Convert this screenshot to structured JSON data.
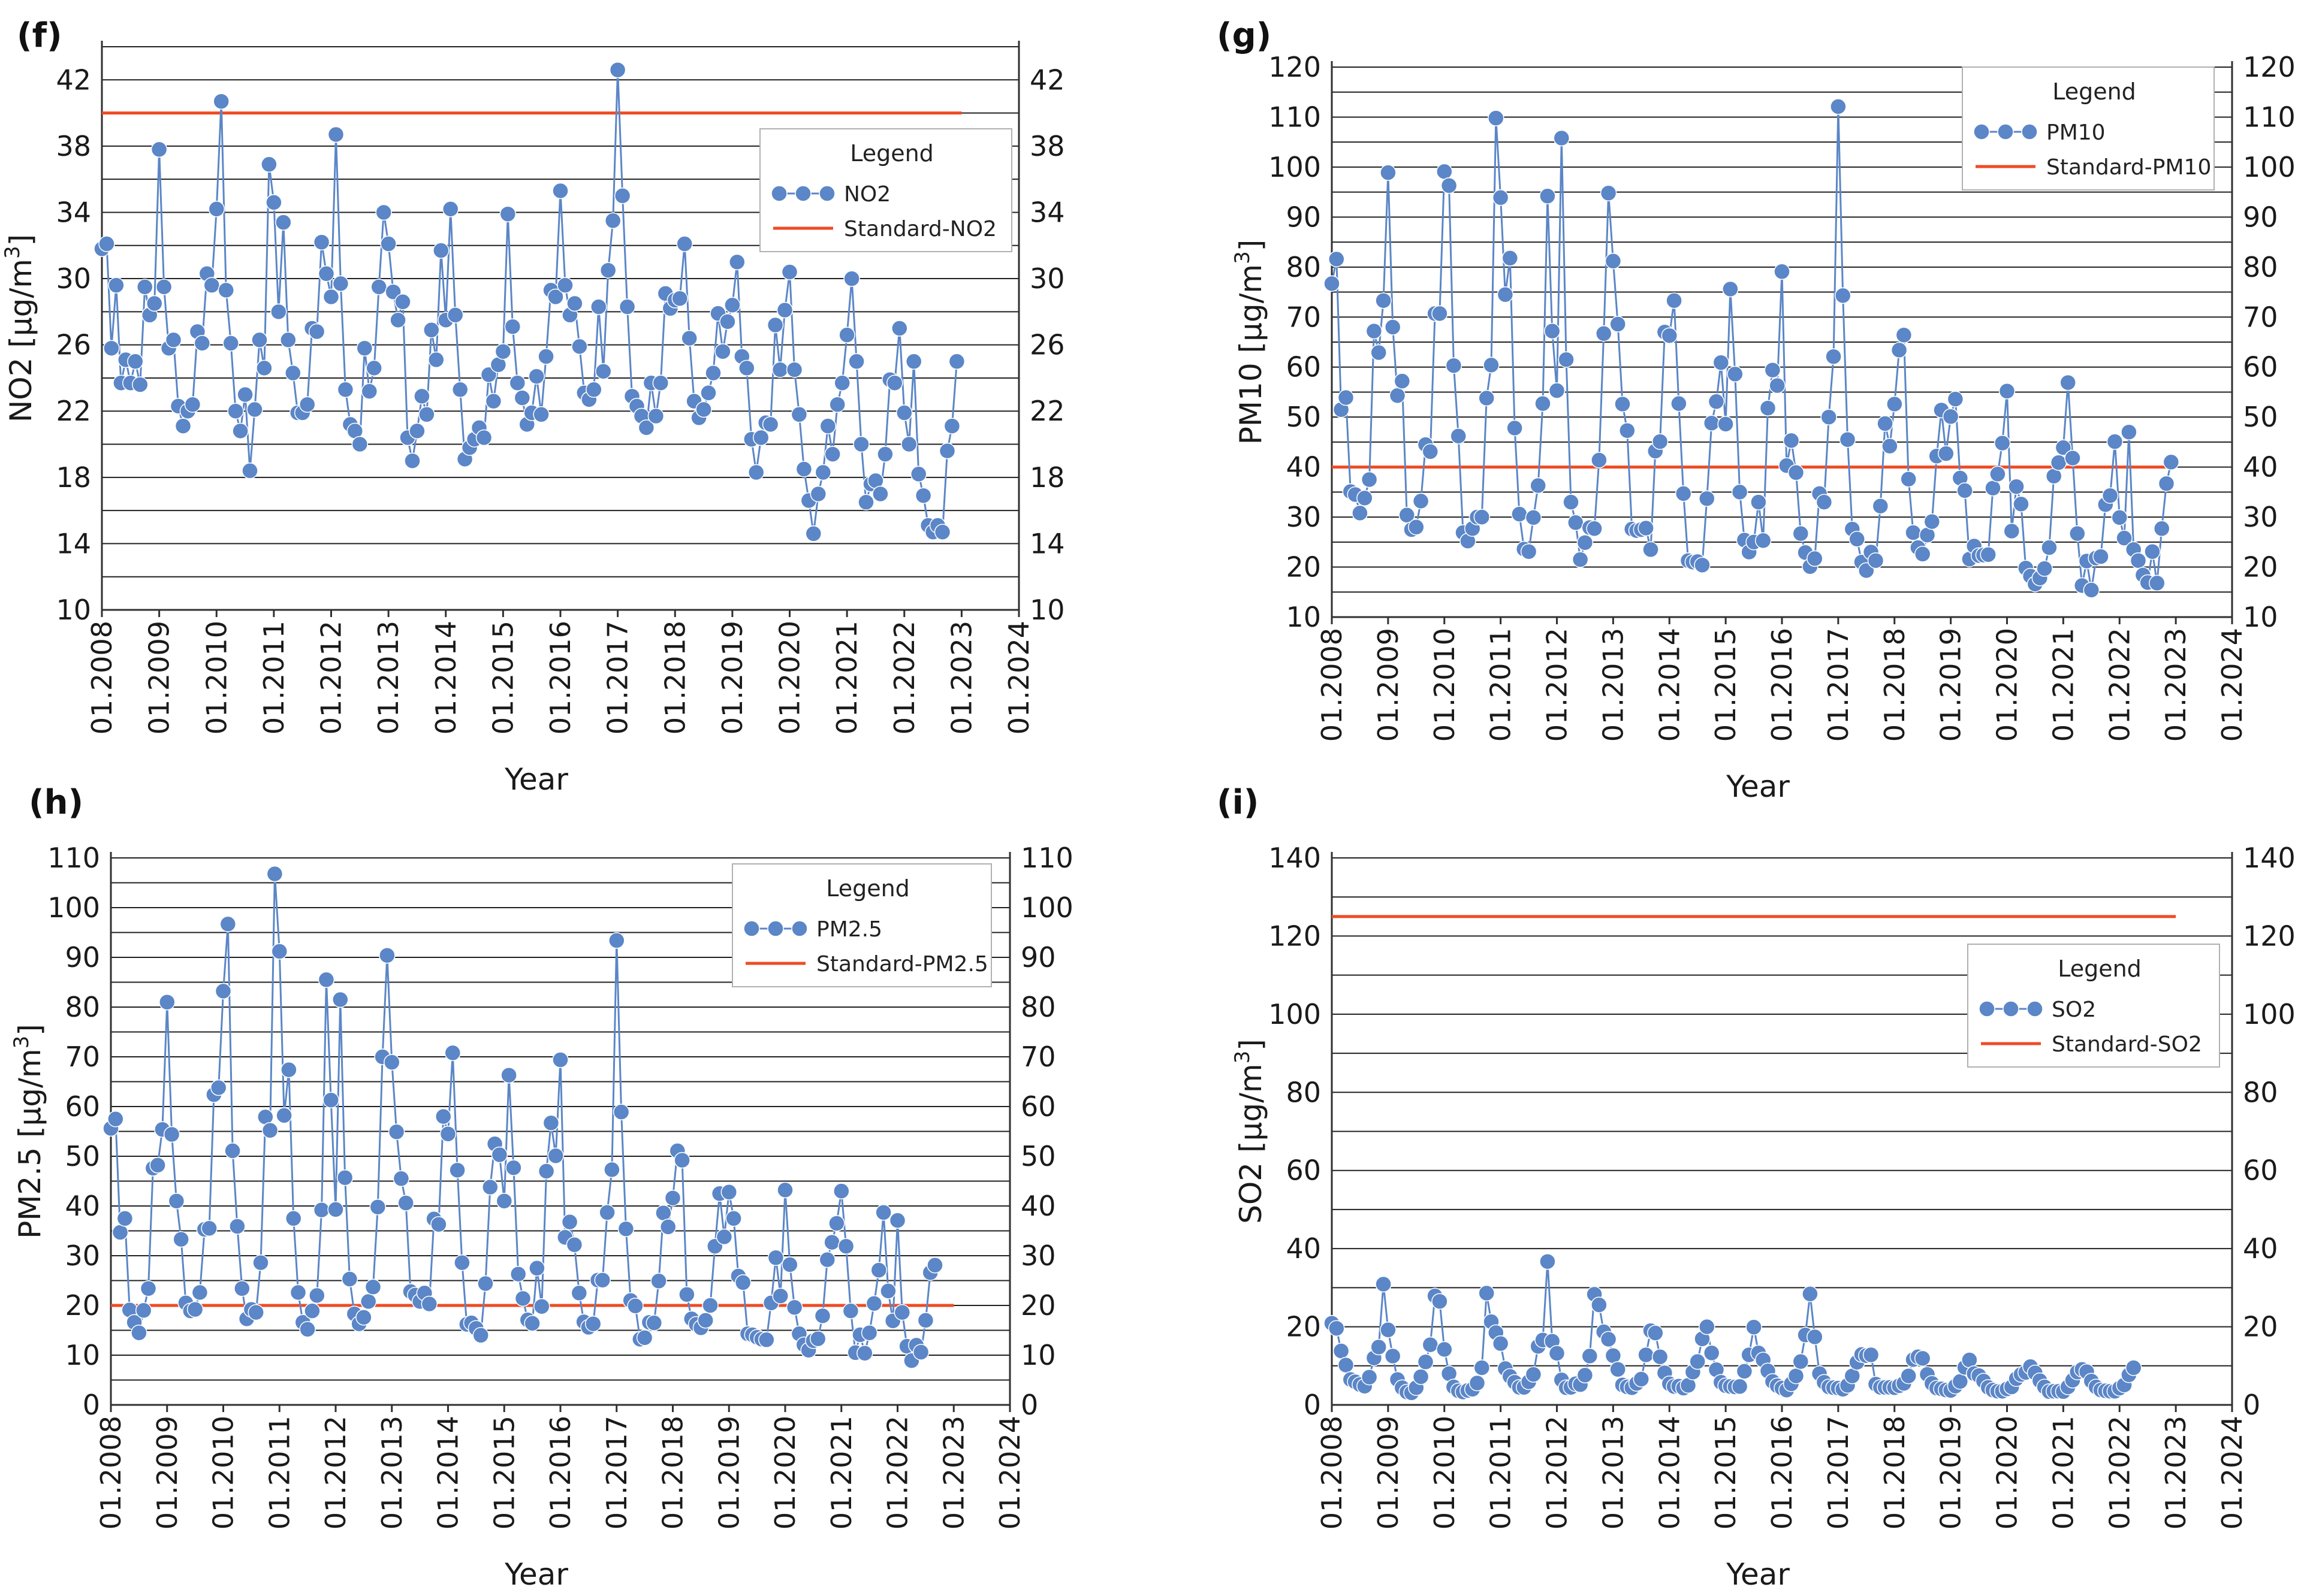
{
  "chart_data": [
    {
      "type": "line",
      "panel": "(f)",
      "xlabel": "Year",
      "ylabel": "NO2 [µg/m3]",
      "ylabel_main": "NO2 [µg/m",
      "ylabel_sup": "3",
      "ylabel_close": "]",
      "ylim": [
        10,
        44
      ],
      "yticks": [
        10,
        14,
        18,
        22,
        26,
        30,
        34,
        38,
        42
      ],
      "grid": true,
      "x_ticks": [
        "01.2008",
        "01.2009",
        "01.2010",
        "01.2011",
        "01.2012",
        "01.2013",
        "01.2014",
        "01.2015",
        "01.2016",
        "01.2017",
        "01.2018",
        "01.2019",
        "01.2020",
        "01.2021",
        "01.2022",
        "01.2023",
        "01.2024"
      ],
      "x_start": "01.2008",
      "legend": {
        "title": "Legend",
        "position": "top-right",
        "series_label": "NO2",
        "standard_label": "Standard-NO2"
      },
      "standard": 40,
      "series": [
        {
          "name": "NO2",
          "color": "#5b86c7",
          "values": [
            31.8,
            32.1,
            25.8,
            29.6,
            23.7,
            25.1,
            23.7,
            25.0,
            23.6,
            29.5,
            27.8,
            28.5,
            37.8,
            29.5,
            25.8,
            26.3,
            22.3,
            21.1,
            22.0,
            22.4,
            26.8,
            26.1,
            30.3,
            29.6,
            34.2,
            40.7,
            29.3,
            26.1,
            22.0,
            20.8,
            23.0,
            18.4,
            22.1,
            26.3,
            24.6,
            36.9,
            34.6,
            28.0,
            33.4,
            26.3,
            24.3,
            21.9,
            21.9,
            22.4,
            27.0,
            26.8,
            32.2,
            30.3,
            28.9,
            38.7,
            29.7,
            23.3,
            21.2,
            20.8,
            20.0,
            25.8,
            23.2,
            24.6,
            29.5,
            34.0,
            32.1,
            29.2,
            27.5,
            28.6,
            20.4,
            19.0,
            20.8,
            22.9,
            21.8,
            26.9,
            25.1,
            31.7,
            27.5,
            34.2,
            27.8,
            23.3,
            19.1,
            19.8,
            20.3,
            21.0,
            20.4,
            24.2,
            22.6,
            24.8,
            25.6,
            33.9,
            27.1,
            23.7,
            22.8,
            21.2,
            21.9,
            24.1,
            21.8,
            25.3,
            29.3,
            28.9,
            35.3,
            29.6,
            27.8,
            28.5,
            25.9,
            23.1,
            22.7,
            23.3,
            28.3,
            24.4,
            30.5,
            33.5,
            42.6,
            35.0,
            28.3,
            22.9,
            22.3,
            21.7,
            21.0,
            23.7,
            21.7,
            23.7,
            29.1,
            28.2,
            28.7,
            28.8,
            32.1,
            26.4,
            22.6,
            21.6,
            22.1,
            23.1,
            24.3,
            27.9,
            25.6,
            27.4,
            28.4,
            31.0,
            25.3,
            24.6,
            20.3,
            18.3,
            20.4,
            21.3,
            21.2,
            27.2,
            24.5,
            28.1,
            30.4,
            24.5,
            21.8,
            18.5,
            16.6,
            14.6,
            17.0,
            18.3,
            21.1,
            19.4,
            22.4,
            23.7,
            26.6,
            30.0,
            25.0,
            20.0,
            16.5,
            17.6,
            17.8,
            17.0,
            19.4,
            23.9,
            23.7,
            27.0,
            21.9,
            20.0,
            25.0,
            18.2,
            16.9,
            15.1,
            14.7,
            15.1,
            14.7,
            19.6,
            21.1,
            25.0
          ]
        }
      ]
    },
    {
      "type": "line",
      "panel": "(g)",
      "xlabel": "Year",
      "ylabel": "PM10 [µg/m3]",
      "ylabel_main": "PM10 [µg/m",
      "ylabel_sup": "3",
      "ylabel_close": "]",
      "ylim": [
        10,
        120
      ],
      "yticks": [
        10,
        20,
        30,
        40,
        50,
        60,
        70,
        80,
        90,
        100,
        110,
        120
      ],
      "grid": true,
      "x_ticks": [
        "01.2008",
        "01.2009",
        "01.2010",
        "01.2011",
        "01.2012",
        "01.2013",
        "01.2014",
        "01.2015",
        "01.2016",
        "01.2017",
        "01.2018",
        "01.2019",
        "01.2020",
        "01.2021",
        "01.2022",
        "01.2023",
        "01.2024"
      ],
      "x_start": "01.2008",
      "legend": {
        "title": "Legend",
        "position": "top-right",
        "series_label": "PM10",
        "standard_label": "Standard-PM10"
      },
      "standard": 40,
      "series": [
        {
          "name": "PM10",
          "color": "#5b86c7",
          "values": [
            76.7,
            81.6,
            51.5,
            53.9,
            35.1,
            34.5,
            30.8,
            33.8,
            37.5,
            67.2,
            62.9,
            73.3,
            98.9,
            68.0,
            54.3,
            57.2,
            30.4,
            27.5,
            28.0,
            33.2,
            44.5,
            43.1,
            70.7,
            70.7,
            99.1,
            96.3,
            60.3,
            46.2,
            26.9,
            25.2,
            27.7,
            30.0,
            30.0,
            53.8,
            60.4,
            109.8,
            93.9,
            74.5,
            81.8,
            47.8,
            30.6,
            23.6,
            23.1,
            29.9,
            36.3,
            52.7,
            94.2,
            67.2,
            55.3,
            105.8,
            61.5,
            33.0,
            28.9,
            21.5,
            24.9,
            27.9,
            27.7,
            41.4,
            66.7,
            94.8,
            81.2,
            68.6,
            52.6,
            47.3,
            27.6,
            27.3,
            27.5,
            27.8,
            23.5,
            43.2,
            45.1,
            67.0,
            66.3,
            73.3,
            52.7,
            34.7,
            21.3,
            21.0,
            21.1,
            20.4,
            33.7,
            48.8,
            53.1,
            60.9,
            48.6,
            75.6,
            58.6,
            35.0,
            25.4,
            23.0,
            25.0,
            33.0,
            25.3,
            51.8,
            59.4,
            56.3,
            79.1,
            40.3,
            45.3,
            38.9,
            26.7,
            22.9,
            20.1,
            21.7,
            34.7,
            33.0,
            50.0,
            62.1,
            112.1,
            74.3,
            45.5,
            27.6,
            25.6,
            21.0,
            19.3,
            23.0,
            21.3,
            32.2,
            48.7,
            44.2,
            52.6,
            63.4,
            66.4,
            37.6,
            26.9,
            23.9,
            22.6,
            26.4,
            29.1,
            42.2,
            51.4,
            42.7,
            50.1,
            53.6,
            37.8,
            35.3,
            21.6,
            24.2,
            22.3,
            22.4,
            22.5,
            35.8,
            38.6,
            44.8,
            55.2,
            27.2,
            36.1,
            32.6,
            19.8,
            18.2,
            16.6,
            17.8,
            19.7,
            23.9,
            38.2,
            40.9,
            43.9,
            56.9,
            41.8,
            26.7,
            16.3,
            21.2,
            15.4,
            21.8,
            22.1,
            32.5,
            34.3,
            45.1,
            29.9,
            25.8,
            47.0,
            23.5,
            21.3,
            18.4,
            16.9,
            23.1,
            16.8,
            27.7,
            36.7,
            41.0
          ]
        }
      ]
    },
    {
      "type": "line",
      "panel": "(h)",
      "xlabel": "Year",
      "ylabel": "PM2.5 [µg/m3]",
      "ylabel_main": "PM2.5 [µg/m",
      "ylabel_sup": "3",
      "ylabel_close": "]",
      "ylim": [
        0,
        110
      ],
      "yticks": [
        0,
        10,
        20,
        30,
        40,
        50,
        60,
        70,
        80,
        90,
        100,
        110
      ],
      "grid": true,
      "x_ticks": [
        "01.2008",
        "01.2009",
        "01.2010",
        "01.2011",
        "01.2012",
        "01.2013",
        "01.2014",
        "01.2015",
        "01.2016",
        "01.2017",
        "01.2018",
        "01.2019",
        "01.2020",
        "01.2021",
        "01.2022",
        "01.2023",
        "01.2024"
      ],
      "x_start": "01.2008",
      "legend": {
        "title": "Legend",
        "position": "top-right",
        "series_label": "PM2.5",
        "standard_label": "Standard-PM2.5"
      },
      "standard": 20,
      "series": [
        {
          "name": "PM2.5",
          "color": "#5b86c7",
          "values": [
            55.6,
            57.5,
            34.7,
            37.5,
            19.1,
            16.6,
            14.5,
            19.0,
            23.4,
            47.6,
            48.2,
            55.4,
            81.0,
            54.4,
            41.0,
            33.3,
            20.5,
            18.9,
            19.2,
            22.6,
            35.3,
            35.5,
            62.4,
            63.8,
            83.2,
            96.7,
            51.1,
            35.9,
            23.4,
            17.3,
            19.2,
            18.6,
            28.6,
            57.9,
            55.2,
            106.8,
            91.2,
            58.2,
            67.4,
            37.5,
            22.6,
            16.6,
            15.2,
            18.9,
            22.0,
            39.2,
            85.5,
            61.3,
            39.3,
            81.5,
            45.7,
            25.3,
            18.3,
            16.3,
            17.6,
            20.8,
            23.7,
            39.8,
            70.0,
            90.4,
            68.9,
            54.9,
            45.5,
            40.6,
            22.8,
            22.1,
            20.8,
            22.5,
            20.3,
            37.4,
            36.3,
            58.0,
            54.5,
            70.8,
            47.2,
            28.6,
            16.2,
            16.5,
            15.4,
            14.0,
            24.4,
            43.8,
            52.5,
            50.3,
            41.0,
            66.3,
            47.7,
            26.3,
            21.4,
            17.1,
            16.4,
            27.5,
            19.8,
            47.0,
            56.7,
            50.1,
            69.4,
            33.7,
            36.8,
            32.2,
            22.5,
            16.7,
            15.6,
            16.3,
            25.1,
            25.1,
            38.7,
            47.3,
            93.4,
            58.9,
            35.4,
            21.0,
            19.9,
            13.2,
            13.5,
            16.6,
            16.5,
            24.9,
            38.6,
            35.8,
            41.6,
            51.1,
            49.2,
            22.2,
            17.3,
            16.2,
            15.5,
            17.0,
            20.0,
            31.9,
            42.5,
            33.8,
            42.8,
            37.5,
            25.9,
            24.6,
            14.3,
            14.1,
            13.6,
            13.2,
            13.1,
            20.5,
            29.6,
            21.9,
            43.2,
            28.2,
            19.6,
            14.3,
            12.1,
            11.0,
            12.9,
            13.3,
            17.9,
            29.2,
            32.7,
            36.5,
            43.0,
            31.9,
            18.9,
            10.5,
            14.1,
            10.4,
            14.5,
            20.4,
            27.1,
            38.7,
            22.9,
            16.9,
            37.1,
            18.6,
            11.8,
            8.9,
            12.0,
            10.6,
            17.0,
            26.6,
            28.1
          ]
        }
      ]
    },
    {
      "type": "line",
      "panel": "(i)",
      "xlabel": "Year",
      "ylabel": "SO2 [µg/m3]",
      "ylabel_main": "SO2 [µg/m",
      "ylabel_sup": "3",
      "ylabel_close": "]",
      "ylim": [
        0,
        140
      ],
      "yticks": [
        0,
        20,
        40,
        60,
        80,
        100,
        120,
        140
      ],
      "grid": true,
      "x_ticks": [
        "01.2008",
        "01.2009",
        "01.2010",
        "01.2011",
        "01.2012",
        "01.2013",
        "01.2014",
        "01.2015",
        "01.2016",
        "01.2017",
        "01.2018",
        "01.2019",
        "01.2020",
        "01.2021",
        "01.2022",
        "01.2023",
        "01.2024"
      ],
      "x_start": "01.2008",
      "legend": {
        "title": "Legend",
        "position": "right",
        "series_label": "SO2",
        "standard_label": "Standard-SO2"
      },
      "standard": 125,
      "series": [
        {
          "name": "SO2",
          "color": "#5b86c7",
          "values": [
            20.9,
            19.6,
            13.8,
            10.2,
            6.5,
            5.9,
            5.2,
            4.8,
            7.1,
            12.0,
            14.8,
            30.9,
            19.2,
            12.5,
            6.5,
            4.4,
            3.3,
            3.1,
            4.4,
            7.2,
            11.0,
            15.4,
            27.9,
            26.5,
            14.2,
            8.0,
            4.6,
            3.6,
            3.3,
            3.7,
            4.0,
            5.6,
            9.5,
            28.6,
            21.3,
            18.5,
            15.7,
            9.3,
            7.3,
            5.8,
            4.5,
            4.5,
            5.9,
            7.8,
            15.0,
            16.6,
            36.7,
            16.3,
            13.2,
            6.4,
            4.4,
            4.5,
            5.4,
            5.2,
            7.6,
            12.5,
            28.3,
            25.6,
            18.7,
            16.8,
            12.6,
            9.1,
            5.1,
            4.6,
            4.4,
            5.5,
            6.6,
            12.8,
            19.0,
            18.4,
            12.3,
            8.2,
            5.4,
            4.7,
            4.8,
            4.3,
            5.0,
            8.4,
            11.1,
            16.9,
            20.0,
            13.3,
            9.0,
            5.8,
            4.9,
            4.7,
            4.6,
            4.7,
            8.6,
            12.8,
            19.9,
            13.3,
            11.5,
            8.7,
            6.0,
            4.9,
            4.3,
            3.8,
            5.4,
            7.4,
            11.1,
            17.9,
            28.4,
            17.4,
            8.0,
            5.8,
            4.6,
            4.4,
            4.3,
            4.0,
            5.0,
            7.4,
            10.9,
            12.9,
            12.6,
            12.8,
            5.3,
            4.5,
            4.5,
            4.5,
            4.4,
            4.9,
            5.5,
            7.4,
            11.6,
            12.3,
            11.9,
            7.8,
            5.5,
            4.3,
            4.1,
            3.8,
            3.7,
            4.8,
            6.0,
            9.6,
            11.5,
            8.0,
            7.5,
            6.1,
            4.5,
            3.8,
            3.5,
            3.5,
            4.1,
            4.6,
            6.7,
            7.8,
            8.3,
            9.8,
            8.2,
            6.2,
            4.6,
            3.4,
            3.5,
            3.5,
            3.4,
            4.6,
            6.3,
            8.4,
            9.1,
            8.5,
            6.1,
            4.6,
            3.8,
            3.6,
            3.5,
            3.5,
            4.3,
            5.1,
            7.7,
            9.5
          ]
        }
      ]
    }
  ]
}
